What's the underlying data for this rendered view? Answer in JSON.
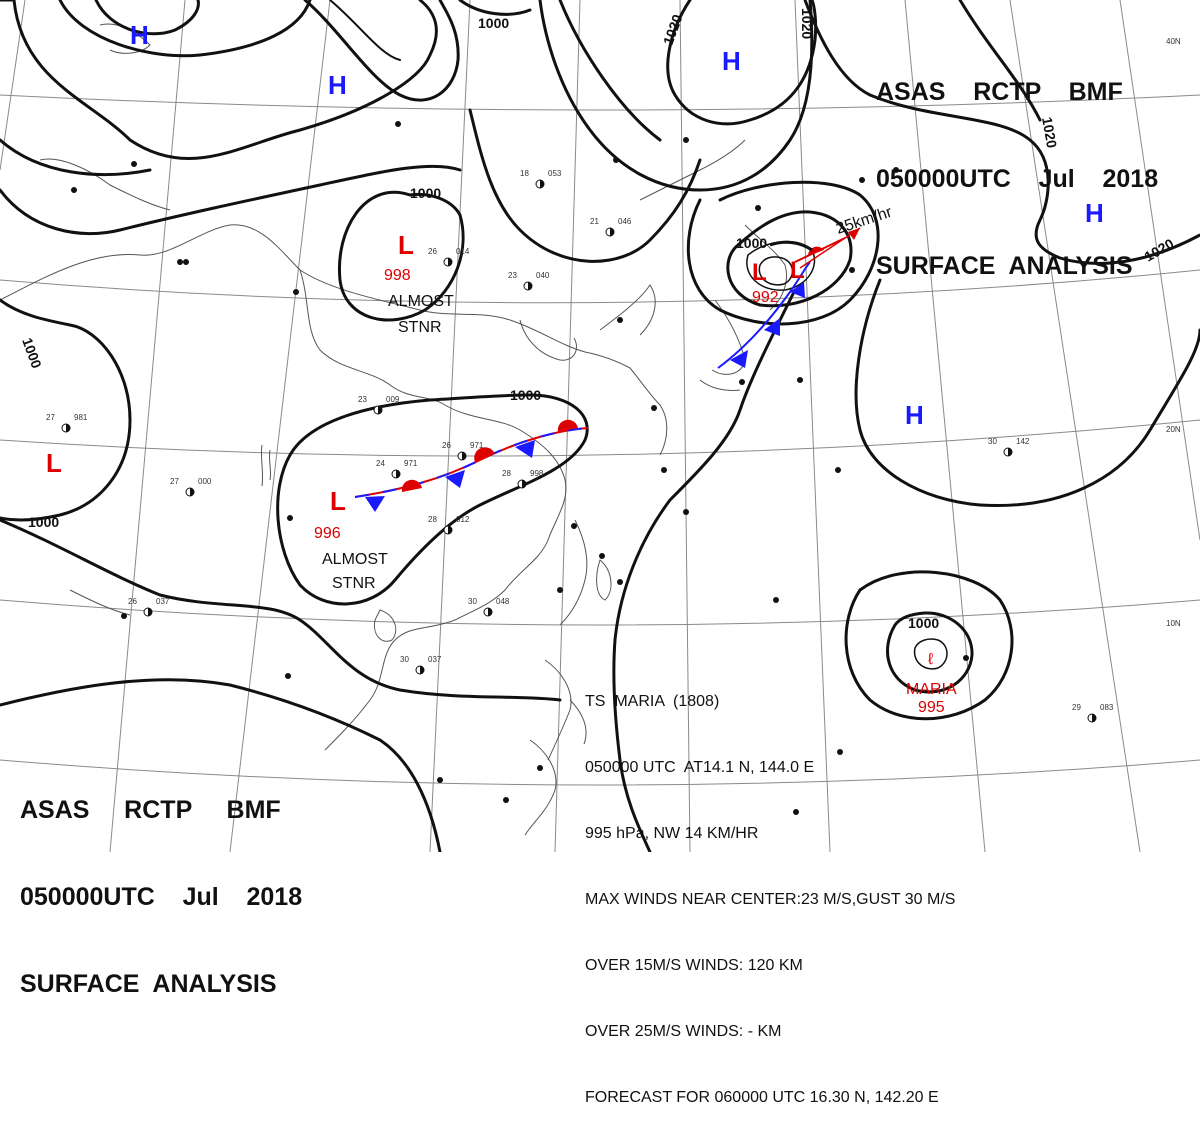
{
  "header": {
    "top_right": {
      "line1": "ASAS    RCTP    BMF",
      "line2": "050000UTC    Jul    2018",
      "line3": "SURFACE  ANALYSIS"
    },
    "bottom_left": {
      "line1": "ASAS     RCTP     BMF",
      "line2": "050000UTC    Jul    2018",
      "line3": "SURFACE  ANALYSIS"
    }
  },
  "lat_labels": {
    "n40": "40N",
    "n20": "20N",
    "n10": "10N"
  },
  "pressure_systems": {
    "high_topleft": "H",
    "high_upper": "H",
    "high_japan": "H",
    "high_east": "H",
    "high_pacific": "H",
    "low_north": {
      "symbol": "L",
      "value": "998",
      "note1": "ALMOST",
      "note2": "STNR"
    },
    "low_center": {
      "symbol": "L",
      "value": "996",
      "note1": "ALMOST",
      "note2": "STNR"
    },
    "low_west": "L",
    "low_japan_1": "L",
    "low_japan_2": {
      "symbol": "L",
      "value": "992"
    },
    "storm_maria": {
      "name": "MARIA",
      "value": "995"
    }
  },
  "isobars": {
    "i1000_north": "1000",
    "i1000_center": "1000",
    "i1000_west_a": "1000",
    "i1000_west_b": "1000",
    "i1000_top": "1000",
    "i1000_japan": "1000",
    "i1000_maria": "1000",
    "i1020_a": "1020",
    "i1020_b": "1020",
    "i1020_c": "1020",
    "i1020_d": "1020"
  },
  "motion_label": "25km/hr",
  "storm_info": {
    "line1": "TS  MARIA  (1808)",
    "line2": "050000 UTC  AT14.1 N, 144.0 E",
    "line3": "995 hPa, NW 14 KM/HR",
    "line4": "MAX WINDS NEAR CENTER:23 M/S,GUST 30 M/S",
    "line5": "OVER 15M/S WINDS: 120 KM",
    "line6": "OVER 25M/S WINDS: - KM",
    "line7": "FORECAST FOR 060000 UTC 16.30 N, 142.20 E"
  },
  "stations": [
    {
      "id": "s1",
      "t": "26",
      "p": "971"
    },
    {
      "id": "s2",
      "t": "28",
      "p": "998"
    },
    {
      "id": "s3",
      "t": "23",
      "p": "009"
    },
    {
      "id": "s4",
      "t": "26",
      "p": "014"
    },
    {
      "id": "s5",
      "t": "23",
      "p": "040"
    },
    {
      "id": "s6",
      "t": "27",
      "p": "000"
    },
    {
      "id": "s7",
      "t": "30",
      "p": "037"
    },
    {
      "id": "s8",
      "t": "28",
      "p": "012"
    },
    {
      "id": "s9",
      "t": "30",
      "p": "048"
    },
    {
      "id": "s10",
      "t": "18",
      "p": "053"
    },
    {
      "id": "s11",
      "t": "21",
      "p": "046"
    },
    {
      "id": "s12",
      "t": "30",
      "p": "142"
    },
    {
      "id": "s13",
      "t": "29",
      "p": "083"
    },
    {
      "id": "s14",
      "t": "27",
      "p": "981"
    },
    {
      "id": "s15",
      "t": "24",
      "p": "971"
    },
    {
      "id": "s16",
      "t": "26",
      "p": "037"
    }
  ]
}
